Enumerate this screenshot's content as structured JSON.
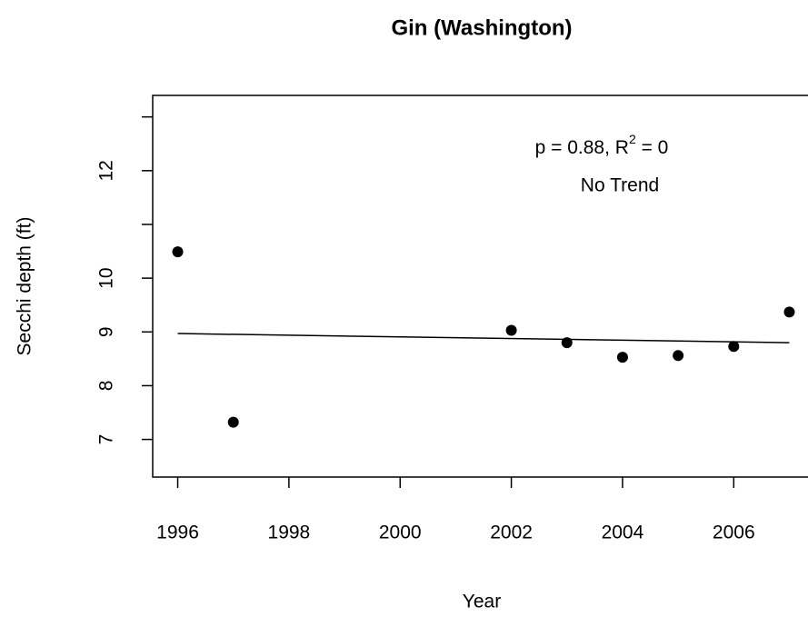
{
  "chart_data": {
    "type": "scatter",
    "title": "Gin (Washington)",
    "xlabel": "Year",
    "ylabel": "Secchi depth (ft)",
    "x": [
      1996,
      1997,
      2002,
      2003,
      2004,
      2005,
      2006,
      2007
    ],
    "values": [
      10.49,
      7.32,
      9.03,
      8.8,
      8.53,
      8.56,
      8.73,
      9.37
    ],
    "color": "#000000",
    "trend": {
      "x": [
        1996,
        2007
      ],
      "values": [
        8.97,
        8.8
      ]
    },
    "annotation": [
      "p = 0.88, R",
      "2",
      " = 0"
    ],
    "annotation2": "No Trend",
    "xlim": [
      1995.55,
      2007.45
    ],
    "xticks": [
      1996,
      1998,
      2000,
      2002,
      2004,
      2006
    ],
    "ylim": [
      6.3,
      13.4
    ],
    "yticks": [
      7,
      8,
      9,
      10,
      {
        "value": 11,
        "label": null
      },
      12,
      {
        "value": 13,
        "label": null
      }
    ]
  }
}
